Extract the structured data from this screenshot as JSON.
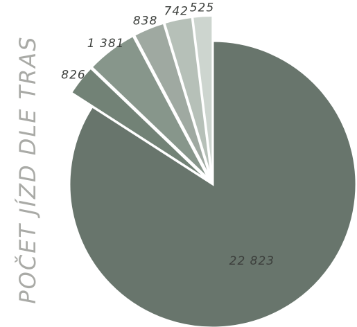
{
  "chart_data": {
    "type": "pie",
    "ylabel": "POČET JÍZD DLE TRAS",
    "slices": [
      {
        "value": 22823,
        "label": "22 823",
        "color": "#68756c",
        "exploded": false
      },
      {
        "value": 826,
        "label": "826",
        "color": "#728276",
        "exploded": true
      },
      {
        "value": 1381,
        "label": "1 381",
        "color": "#87968b",
        "exploded": true
      },
      {
        "value": 838,
        "label": "838",
        "color": "#9fa9a1",
        "exploded": true
      },
      {
        "value": 742,
        "label": "742",
        "color": "#b6c0b8",
        "exploded": true
      },
      {
        "value": 525,
        "label": "525",
        "color": "#cdd5cf",
        "exploded": true
      }
    ]
  }
}
